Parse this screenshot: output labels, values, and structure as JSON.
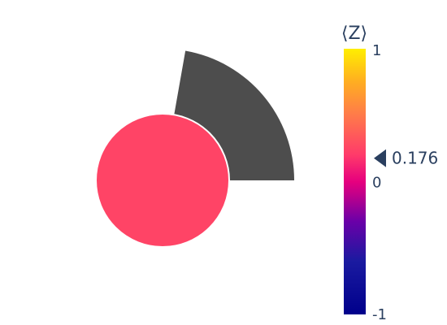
{
  "chart_data": {
    "type": "polar-sector-glyph",
    "sector": {
      "angle_start_deg": 0,
      "angle_end_deg": 80,
      "inner_radius_fraction": 0.0,
      "color": "#4d4d4d"
    },
    "disc": {
      "value": 0.176,
      "color": "#ff4466",
      "stroke": "#ffffff"
    },
    "colorbar": {
      "title": "⟨Z⟩",
      "min": -1,
      "max": 1,
      "tick_labels": [
        "1",
        "0",
        "-1"
      ],
      "tick_values": [
        1,
        0,
        -1
      ],
      "marker_value": 0.176,
      "marker_label": "0.176",
      "colorscale": [
        "#0d0887",
        "#46039f",
        "#7201a8",
        "#9c179e",
        "#bd3786",
        "#d8576b",
        "#ed7953",
        "#fb9f3a",
        "#fdca26",
        "#f0f921"
      ],
      "display_colorscale": [
        {
          "stop": 0.0,
          "color": "#00008b"
        },
        {
          "stop": 0.2,
          "color": "#1a1aa0"
        },
        {
          "stop": 0.35,
          "color": "#6a00a8"
        },
        {
          "stop": 0.45,
          "color": "#c0008a"
        },
        {
          "stop": 0.5,
          "color": "#e6007e"
        },
        {
          "stop": 0.6,
          "color": "#ff3a6a"
        },
        {
          "stop": 0.75,
          "color": "#ff7a4a"
        },
        {
          "stop": 0.88,
          "color": "#ffb020"
        },
        {
          "stop": 1.0,
          "color": "#ffee00"
        }
      ]
    }
  }
}
